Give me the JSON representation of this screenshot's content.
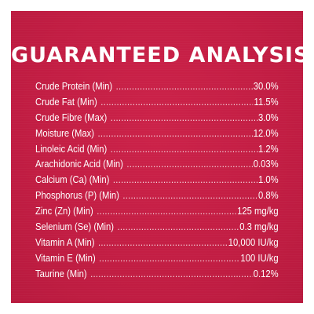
{
  "title": "GUARANTEED ANALYSIS",
  "colors": {
    "background": "#c51f45",
    "text": "#ffffff"
  },
  "rows": [
    {
      "name": "Crude Protein (Min)",
      "value": "30.0%"
    },
    {
      "name": "Crude Fat (Min)",
      "value": "11.5%"
    },
    {
      "name": "Crude Fibre (Max)",
      "value": "3.0%"
    },
    {
      "name": "Moisture (Max)",
      "value": "12.0%"
    },
    {
      "name": "Linoleic Acid (Min)",
      "value": "1.2%"
    },
    {
      "name": "Arachidonic Acid (Min)",
      "value": "0.03%"
    },
    {
      "name": "Calcium (Ca) (Min)",
      "value": "1.0%"
    },
    {
      "name": "Phosphorus (P) (Min)",
      "value": "0.8%"
    },
    {
      "name": "Zinc (Zn) (Min)",
      "value": "125 mg/kg"
    },
    {
      "name": "Selenium (Se) (Min)",
      "value": "0.3 mg/kg"
    },
    {
      "name": "Vitamin A (Min)",
      "value": "10,000 IU/kg"
    },
    {
      "name": "Vitamin E (Min)",
      "value": "100 IU/kg"
    },
    {
      "name": "Taurine (Min)",
      "value": "0.12%"
    }
  ]
}
